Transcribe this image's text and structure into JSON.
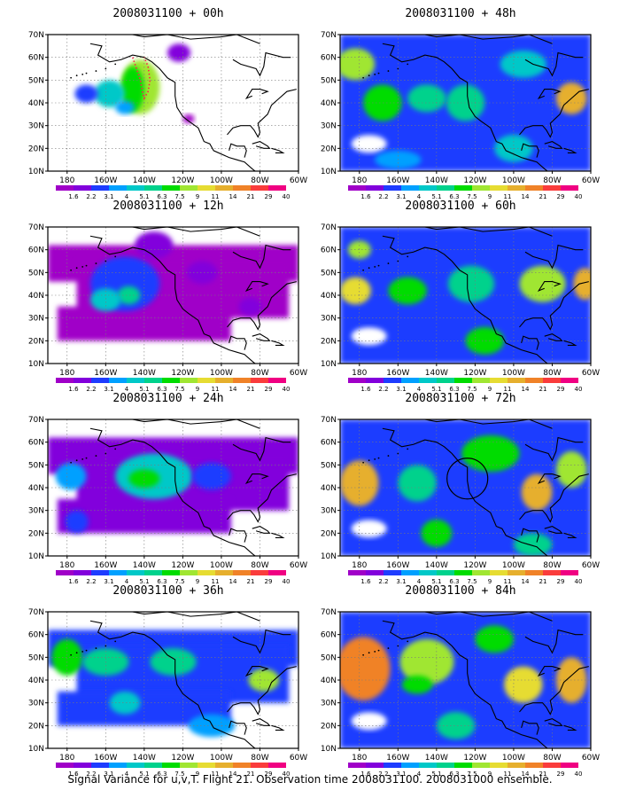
{
  "panels": [
    {
      "title": "2008031100 + 00h",
      "level": 0,
      "ring": false,
      "obs_track": true,
      "blobs": [
        {
          "lon": -142,
          "lat": 47,
          "rx": 10,
          "ry": 12,
          "v": 9
        },
        {
          "lon": -146,
          "lat": 46,
          "rx": 6,
          "ry": 10,
          "v": 7.5
        },
        {
          "lon": -158,
          "lat": 44,
          "rx": 8,
          "ry": 6,
          "v": 5.1
        },
        {
          "lon": -170,
          "lat": 44,
          "rx": 6,
          "ry": 4,
          "v": 3.1
        },
        {
          "lon": -150,
          "lat": 38,
          "rx": 5,
          "ry": 3,
          "v": 4
        },
        {
          "lon": -122,
          "lat": 62,
          "rx": 6,
          "ry": 4,
          "v": 2.2
        },
        {
          "lon": -117,
          "lat": 33,
          "rx": 3,
          "ry": 2,
          "v": 1.6
        }
      ]
    },
    {
      "title": "2008031100 + 48h",
      "level": 4,
      "ring": false,
      "obs_track": false,
      "blobs": [
        {
          "lon": -182,
          "lat": 57,
          "rx": 10,
          "ry": 7,
          "v": 9
        },
        {
          "lon": -168,
          "lat": 40,
          "rx": 10,
          "ry": 8,
          "v": 7.5
        },
        {
          "lon": -145,
          "lat": 42,
          "rx": 10,
          "ry": 6,
          "v": 6.3
        },
        {
          "lon": -125,
          "lat": 40,
          "rx": 10,
          "ry": 8,
          "v": 6.3
        },
        {
          "lon": -95,
          "lat": 57,
          "rx": 12,
          "ry": 6,
          "v": 5.1
        },
        {
          "lon": -70,
          "lat": 42,
          "rx": 8,
          "ry": 7,
          "v": 14
        },
        {
          "lon": -100,
          "lat": 20,
          "rx": 10,
          "ry": 6,
          "v": 5.1
        },
        {
          "lon": -160,
          "lat": 15,
          "rx": 12,
          "ry": 4,
          "v": 4
        }
      ]
    },
    {
      "title": "2008031100 + 12h",
      "level": 1,
      "ring": false,
      "obs_track": false,
      "blobs": [
        {
          "lon": -150,
          "lat": 45,
          "rx": 18,
          "ry": 12,
          "v": 3.1
        },
        {
          "lon": -148,
          "lat": 40,
          "rx": 6,
          "ry": 4,
          "v": 6.3
        },
        {
          "lon": -160,
          "lat": 38,
          "rx": 8,
          "ry": 5,
          "v": 5.1
        },
        {
          "lon": -135,
          "lat": 62,
          "rx": 10,
          "ry": 6,
          "v": 2.2
        },
        {
          "lon": -110,
          "lat": 50,
          "rx": 8,
          "ry": 5,
          "v": 2.2
        },
        {
          "lon": -85,
          "lat": 35,
          "rx": 6,
          "ry": 4,
          "v": 2.2
        }
      ]
    },
    {
      "title": "2008031100 + 60h",
      "level": 4,
      "ring": false,
      "obs_track": false,
      "blobs": [
        {
          "lon": -180,
          "lat": 60,
          "rx": 6,
          "ry": 4,
          "v": 9
        },
        {
          "lon": -182,
          "lat": 42,
          "rx": 8,
          "ry": 6,
          "v": 11
        },
        {
          "lon": -155,
          "lat": 42,
          "rx": 10,
          "ry": 6,
          "v": 7.5
        },
        {
          "lon": -122,
          "lat": 45,
          "rx": 12,
          "ry": 8,
          "v": 6.3
        },
        {
          "lon": -85,
          "lat": 45,
          "rx": 12,
          "ry": 8,
          "v": 9
        },
        {
          "lon": -63,
          "lat": 45,
          "rx": 6,
          "ry": 7,
          "v": 14
        },
        {
          "lon": -115,
          "lat": 20,
          "rx": 10,
          "ry": 6,
          "v": 7.5
        }
      ]
    },
    {
      "title": "2008031100 + 24h",
      "level": 2,
      "ring": false,
      "obs_track": false,
      "blobs": [
        {
          "lon": -135,
          "lat": 45,
          "rx": 20,
          "ry": 10,
          "v": 5.1
        },
        {
          "lon": -140,
          "lat": 44,
          "rx": 8,
          "ry": 4,
          "v": 7.5
        },
        {
          "lon": -178,
          "lat": 45,
          "rx": 8,
          "ry": 6,
          "v": 4
        },
        {
          "lon": -105,
          "lat": 45,
          "rx": 10,
          "ry": 6,
          "v": 3.1
        },
        {
          "lon": -175,
          "lat": 25,
          "rx": 6,
          "ry": 5,
          "v": 3.1
        }
      ]
    },
    {
      "title": "2008031100 + 72h",
      "level": 5,
      "ring": true,
      "obs_track": false,
      "blobs": [
        {
          "lon": -180,
          "lat": 42,
          "rx": 10,
          "ry": 10,
          "v": 14
        },
        {
          "lon": -150,
          "lat": 42,
          "rx": 10,
          "ry": 8,
          "v": 6.3
        },
        {
          "lon": -112,
          "lat": 55,
          "rx": 15,
          "ry": 8,
          "v": 7.5
        },
        {
          "lon": -88,
          "lat": 38,
          "rx": 8,
          "ry": 8,
          "v": 14
        },
        {
          "lon": -70,
          "lat": 48,
          "rx": 8,
          "ry": 8,
          "v": 9
        },
        {
          "lon": -140,
          "lat": 20,
          "rx": 8,
          "ry": 6,
          "v": 7.5
        },
        {
          "lon": -90,
          "lat": 15,
          "rx": 10,
          "ry": 5,
          "v": 6.3
        }
      ]
    },
    {
      "title": "2008031100 + 36h",
      "level": 3,
      "ring": false,
      "obs_track": false,
      "blobs": [
        {
          "lon": -180,
          "lat": 50,
          "rx": 8,
          "ry": 8,
          "v": 7.5
        },
        {
          "lon": -160,
          "lat": 48,
          "rx": 12,
          "ry": 6,
          "v": 6.3
        },
        {
          "lon": -125,
          "lat": 48,
          "rx": 12,
          "ry": 6,
          "v": 6.3
        },
        {
          "lon": -78,
          "lat": 40,
          "rx": 8,
          "ry": 5,
          "v": 9
        },
        {
          "lon": -150,
          "lat": 30,
          "rx": 8,
          "ry": 5,
          "v": 5.1
        },
        {
          "lon": -105,
          "lat": 20,
          "rx": 12,
          "ry": 5,
          "v": 4
        }
      ]
    },
    {
      "title": "2008031100 + 84h",
      "level": 6,
      "ring": false,
      "obs_track": false,
      "blobs": [
        {
          "lon": -178,
          "lat": 45,
          "rx": 14,
          "ry": 14,
          "v": 21
        },
        {
          "lon": -145,
          "lat": 48,
          "rx": 14,
          "ry": 10,
          "v": 9
        },
        {
          "lon": -150,
          "lat": 38,
          "rx": 8,
          "ry": 4,
          "v": 7.5
        },
        {
          "lon": -95,
          "lat": 38,
          "rx": 10,
          "ry": 8,
          "v": 11
        },
        {
          "lon": -70,
          "lat": 40,
          "rx": 8,
          "ry": 10,
          "v": 14
        },
        {
          "lon": -110,
          "lat": 58,
          "rx": 10,
          "ry": 6,
          "v": 7.5
        },
        {
          "lon": -130,
          "lat": 20,
          "rx": 10,
          "ry": 6,
          "v": 6.3
        }
      ]
    }
  ],
  "lat_labels": [
    "10N",
    "20N",
    "30N",
    "40N",
    "50N",
    "60N",
    "70N"
  ],
  "lon_labels": [
    "180",
    "160W",
    "140W",
    "120W",
    "100W",
    "80W",
    "60W"
  ],
  "scale_labels": [
    "1.6",
    "2.2",
    "3.1",
    "4",
    "5.1",
    "6.3",
    "7.5",
    "9",
    "11",
    "14",
    "21",
    "29",
    "40"
  ],
  "scale_colors": [
    "#a000c8",
    "#8200dc",
    "#1e3cff",
    "#00a0ff",
    "#00c8c8",
    "#00d28c",
    "#00dc00",
    "#a0e632",
    "#e6dc32",
    "#e6af2d",
    "#f08228",
    "#fa3c3c",
    "#f00082"
  ],
  "footer_text": "Signal Variance for u,v,T. Flight 21. Observation time 2008031100. 2008031000 ensemble."
}
